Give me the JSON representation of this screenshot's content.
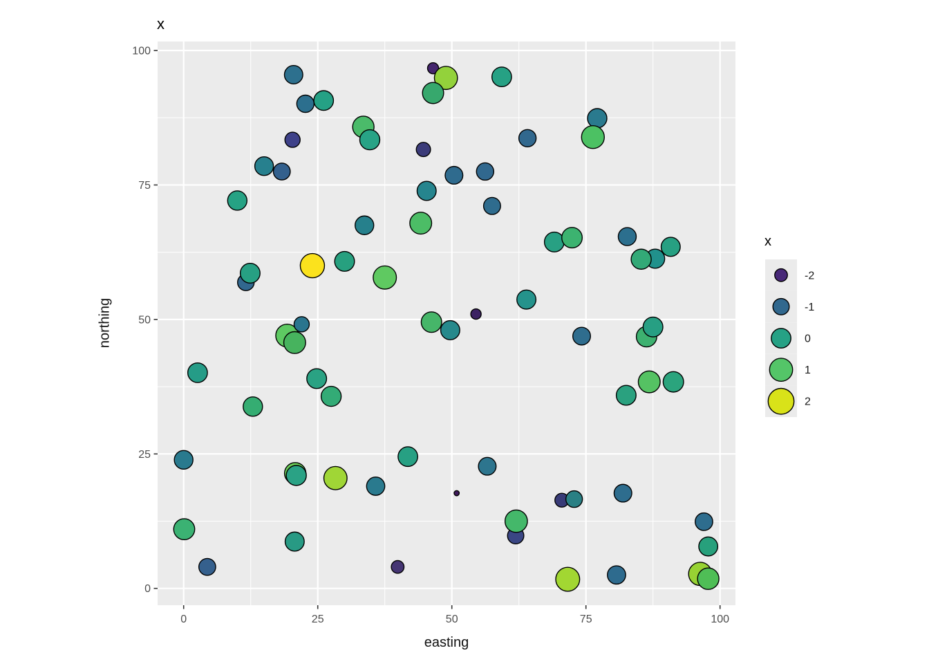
{
  "plot_title": "x",
  "axis": {
    "x_label": "easting",
    "y_label": "northing"
  },
  "legend": {
    "title": "x",
    "entries": [
      {
        "label": "-2",
        "value": -2,
        "color": "#482878",
        "r": 9.2
      },
      {
        "label": "-1",
        "value": -1,
        "color": "#31688e",
        "r": 11.8
      },
      {
        "label": "0",
        "value": 0,
        "color": "#26a185",
        "r": 14.2
      },
      {
        "label": "1",
        "value": 1,
        "color": "#54c568",
        "r": 16.7
      },
      {
        "label": "2",
        "value": 2,
        "color": "#d9e219",
        "r": 18.7
      }
    ]
  },
  "style": {
    "panel_bg": "#ebebeb",
    "grid_color": "#ffffff",
    "tick_label_color": "#4d4d4d",
    "tick_mark_color": "#333333",
    "point_stroke": "#000000",
    "legend_key_bg": "#ebebeb"
  },
  "chart_data": {
    "type": "scatter",
    "title": "x",
    "xlabel": "easting",
    "ylabel": "northing",
    "xlim": [
      0,
      100
    ],
    "ylim": [
      0,
      100
    ],
    "x_ticks": [
      "0",
      "25",
      "50",
      "75",
      "100"
    ],
    "y_ticks": [
      "0",
      "25",
      "50",
      "75",
      "100"
    ],
    "x_tick_values": [
      0,
      25,
      50,
      75,
      100
    ],
    "y_tick_values": [
      0,
      25,
      50,
      75,
      100
    ],
    "x_minor": [
      12.5,
      37.5,
      62.5,
      87.5
    ],
    "y_minor": [
      12.5,
      37.5,
      62.5,
      87.5
    ],
    "grid": "on",
    "legend_position": "right",
    "color_scale": "viridis, mapped to x in [-2,2]",
    "size_scale": "point radius increases with x",
    "points": [
      {
        "x": 20.5,
        "y": 95.5,
        "v": -0.3,
        "r": 13.3,
        "color": "#2d708e"
      },
      {
        "x": 22.7,
        "y": 90.1,
        "v": -0.6,
        "r": 12.5,
        "color": "#2c6f8e"
      },
      {
        "x": 26.1,
        "y": 90.7,
        "v": 0.1,
        "r": 14.2,
        "color": "#25a185"
      },
      {
        "x": 20.3,
        "y": 83.4,
        "v": -1.3,
        "r": 11.0,
        "color": "#3e4189"
      },
      {
        "x": 15.0,
        "y": 78.5,
        "v": -0.2,
        "r": 13.5,
        "color": "#27808e"
      },
      {
        "x": 18.3,
        "y": 77.5,
        "v": -0.8,
        "r": 12.2,
        "color": "#33608d"
      },
      {
        "x": 10.0,
        "y": 72.1,
        "v": 0.0,
        "r": 14.0,
        "color": "#26a284"
      },
      {
        "x": 46.5,
        "y": 96.7,
        "v": -2.4,
        "r": 8.0,
        "color": "#44256d"
      },
      {
        "x": 48.9,
        "y": 94.9,
        "v": 1.2,
        "r": 16.7,
        "color": "#93d23b"
      },
      {
        "x": 46.5,
        "y": 92.1,
        "v": 0.5,
        "r": 15.3,
        "color": "#37a86d"
      },
      {
        "x": 59.3,
        "y": 95.1,
        "v": 0.0,
        "r": 14.2,
        "color": "#26a184"
      },
      {
        "x": 33.5,
        "y": 85.8,
        "v": 0.7,
        "r": 15.5,
        "color": "#4bbb6a"
      },
      {
        "x": 34.7,
        "y": 83.4,
        "v": 0.1,
        "r": 14.5,
        "color": "#28a386"
      },
      {
        "x": 64.1,
        "y": 83.7,
        "v": -0.7,
        "r": 12.5,
        "color": "#31688e"
      },
      {
        "x": 44.7,
        "y": 81.6,
        "v": -1.5,
        "r": 10.3,
        "color": "#3b3b79"
      },
      {
        "x": 50.4,
        "y": 76.8,
        "v": -0.5,
        "r": 12.8,
        "color": "#2f6b8e"
      },
      {
        "x": 56.2,
        "y": 77.5,
        "v": -0.7,
        "r": 12.5,
        "color": "#31688e"
      },
      {
        "x": 45.3,
        "y": 73.9,
        "v": -0.2,
        "r": 13.8,
        "color": "#26858e"
      },
      {
        "x": 57.5,
        "y": 71.1,
        "v": -0.7,
        "r": 12.3,
        "color": "#2f6c8e"
      },
      {
        "x": 33.7,
        "y": 67.5,
        "v": -0.3,
        "r": 13.5,
        "color": "#26808c"
      },
      {
        "x": 44.2,
        "y": 67.9,
        "v": 0.8,
        "r": 15.8,
        "color": "#4cbd66"
      },
      {
        "x": 77.1,
        "y": 87.4,
        "v": -0.4,
        "r": 14.0,
        "color": "#2a7a8e"
      },
      {
        "x": 76.3,
        "y": 83.9,
        "v": 1.0,
        "r": 16.5,
        "color": "#4cc163"
      },
      {
        "x": 11.6,
        "y": 56.9,
        "v": -0.8,
        "r": 12.0,
        "color": "#31678e"
      },
      {
        "x": 12.4,
        "y": 58.6,
        "v": 0.0,
        "r": 14.3,
        "color": "#27a083"
      },
      {
        "x": 24.0,
        "y": 60.0,
        "v": 2.4,
        "r": 17.5,
        "color": "#fbe21d"
      },
      {
        "x": 30.0,
        "y": 60.8,
        "v": 0.1,
        "r": 14.3,
        "color": "#27a07f"
      },
      {
        "x": 19.3,
        "y": 47.0,
        "v": 1.1,
        "r": 16.5,
        "color": "#5ec962"
      },
      {
        "x": 20.7,
        "y": 45.7,
        "v": 0.8,
        "r": 15.8,
        "color": "#47b35e"
      },
      {
        "x": 22.0,
        "y": 49.1,
        "v": -0.6,
        "r": 11.0,
        "color": "#2a758e"
      },
      {
        "x": 2.6,
        "y": 40.1,
        "v": 0.0,
        "r": 14.2,
        "color": "#259c87"
      },
      {
        "x": 24.8,
        "y": 39.0,
        "v": 0.1,
        "r": 14.3,
        "color": "#2aa283"
      },
      {
        "x": 27.5,
        "y": 35.7,
        "v": 0.3,
        "r": 14.5,
        "color": "#33ab76"
      },
      {
        "x": 12.9,
        "y": 33.8,
        "v": 0.2,
        "r": 14.0,
        "color": "#35ad72"
      },
      {
        "x": 37.5,
        "y": 57.8,
        "v": 1.1,
        "r": 16.8,
        "color": "#5fc961"
      },
      {
        "x": 46.2,
        "y": 49.5,
        "v": 0.6,
        "r": 14.8,
        "color": "#46b669"
      },
      {
        "x": 49.7,
        "y": 48.0,
        "v": -0.1,
        "r": 13.8,
        "color": "#26898c"
      },
      {
        "x": 54.5,
        "y": 51.0,
        "v": -2.5,
        "r": 7.5,
        "color": "#3c2263"
      },
      {
        "x": 63.9,
        "y": 53.7,
        "v": 0.0,
        "r": 13.8,
        "color": "#25938c"
      },
      {
        "x": 69.1,
        "y": 64.4,
        "v": 0.1,
        "r": 14.3,
        "color": "#28a083"
      },
      {
        "x": 72.4,
        "y": 65.2,
        "v": 0.5,
        "r": 14.8,
        "color": "#3cb370"
      },
      {
        "x": 82.7,
        "y": 65.4,
        "v": -0.5,
        "r": 13.0,
        "color": "#2c6f8e"
      },
      {
        "x": 87.9,
        "y": 61.3,
        "v": -0.1,
        "r": 13.8,
        "color": "#21918c"
      },
      {
        "x": 85.3,
        "y": 61.2,
        "v": 0.3,
        "r": 14.5,
        "color": "#33a977"
      },
      {
        "x": 90.8,
        "y": 63.5,
        "v": 0.1,
        "r": 13.8,
        "color": "#27a082"
      },
      {
        "x": 74.2,
        "y": 46.9,
        "v": -0.6,
        "r": 12.8,
        "color": "#2f6d8e"
      },
      {
        "x": 86.3,
        "y": 46.8,
        "v": 0.4,
        "r": 14.8,
        "color": "#3db170"
      },
      {
        "x": 87.5,
        "y": 48.6,
        "v": 0.1,
        "r": 14.3,
        "color": "#279f83"
      },
      {
        "x": 86.8,
        "y": 38.4,
        "v": 0.9,
        "r": 15.8,
        "color": "#55c263"
      },
      {
        "x": 91.3,
        "y": 38.4,
        "v": 0.2,
        "r": 14.8,
        "color": "#2ba47d"
      },
      {
        "x": 82.5,
        "y": 35.9,
        "v": 0.1,
        "r": 14.3,
        "color": "#2aa17f"
      },
      {
        "x": 0.0,
        "y": 23.9,
        "v": -0.4,
        "r": 13.5,
        "color": "#297a8e"
      },
      {
        "x": 20.8,
        "y": 21.4,
        "v": 1.0,
        "r": 15.5,
        "color": "#6cce59"
      },
      {
        "x": 21.0,
        "y": 21.0,
        "v": 0.1,
        "r": 14.5,
        "color": "#2aa285"
      },
      {
        "x": 28.3,
        "y": 20.5,
        "v": 1.6,
        "r": 16.8,
        "color": "#a0d636"
      },
      {
        "x": 0.1,
        "y": 11.0,
        "v": 0.4,
        "r": 15.2,
        "color": "#3bb273"
      },
      {
        "x": 20.7,
        "y": 8.7,
        "v": 0.0,
        "r": 13.8,
        "color": "#289a84"
      },
      {
        "x": 4.4,
        "y": 4.0,
        "v": -0.9,
        "r": 12.2,
        "color": "#35608d"
      },
      {
        "x": 41.8,
        "y": 24.5,
        "v": 0.1,
        "r": 14.2,
        "color": "#27a083"
      },
      {
        "x": 35.8,
        "y": 19.0,
        "v": -0.4,
        "r": 13.2,
        "color": "#2a7a8e"
      },
      {
        "x": 56.6,
        "y": 22.7,
        "v": -0.5,
        "r": 12.8,
        "color": "#2d758e"
      },
      {
        "x": 50.9,
        "y": 17.7,
        "v": -2.7,
        "r": 3.7,
        "color": "#401a5c"
      },
      {
        "x": 61.9,
        "y": 9.8,
        "v": -1.1,
        "r": 11.8,
        "color": "#3a4684"
      },
      {
        "x": 62.0,
        "y": 12.5,
        "v": 0.7,
        "r": 16.2,
        "color": "#44b86a"
      },
      {
        "x": 39.9,
        "y": 4.0,
        "v": -2.0,
        "r": 9.2,
        "color": "#453573"
      },
      {
        "x": 70.5,
        "y": 16.4,
        "v": -1.6,
        "r": 10.0,
        "color": "#383b77"
      },
      {
        "x": 72.8,
        "y": 16.6,
        "v": -0.5,
        "r": 12.0,
        "color": "#2a8084"
      },
      {
        "x": 81.9,
        "y": 17.7,
        "v": -0.6,
        "r": 12.8,
        "color": "#2e6d8e"
      },
      {
        "x": 97.0,
        "y": 12.4,
        "v": -0.6,
        "r": 12.7,
        "color": "#2e6d8e"
      },
      {
        "x": 97.8,
        "y": 7.8,
        "v": 0.1,
        "r": 13.7,
        "color": "#27a07c"
      },
      {
        "x": 96.3,
        "y": 2.7,
        "v": 1.5,
        "r": 16.8,
        "color": "#97d233"
      },
      {
        "x": 97.8,
        "y": 1.8,
        "v": 0.9,
        "r": 15.5,
        "color": "#4fbe56"
      },
      {
        "x": 71.6,
        "y": 1.7,
        "v": 1.6,
        "r": 17.3,
        "color": "#a2d732"
      },
      {
        "x": 80.7,
        "y": 2.5,
        "v": -0.6,
        "r": 13.2,
        "color": "#2e6b8e"
      }
    ]
  }
}
